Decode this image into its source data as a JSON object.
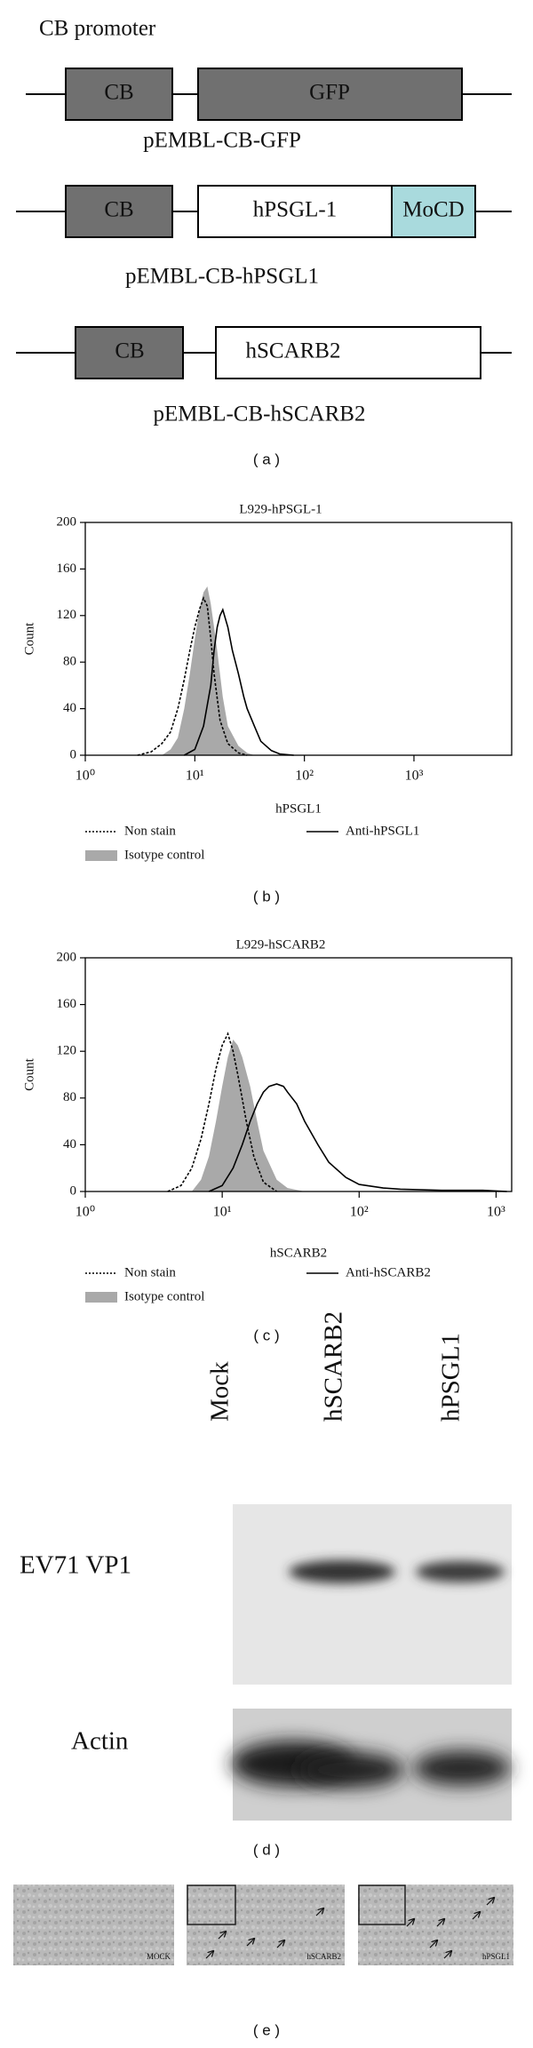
{
  "panel_a": {
    "header": "CB promoter",
    "constructs": [
      {
        "name": "pEMBL-CB-GFP",
        "boxes": [
          "CB",
          "GFP"
        ]
      },
      {
        "name": "pEMBL-CB-hPSGL1",
        "boxes": [
          "CB",
          "hPSGL-1",
          "MoCD"
        ]
      },
      {
        "name": "pEMBL-CB-hSCARB2",
        "boxes": [
          "CB",
          "hSCARB2"
        ]
      }
    ],
    "label": "( a )"
  },
  "chart_data": [
    {
      "type": "histogram-overlay",
      "title": "L929-hPSGL-1",
      "x_label": "hPSGL1",
      "y_label": "Count",
      "panel_label": "( b )",
      "log_x": true,
      "xlim": [
        1,
        7800
      ],
      "xticks": [
        {
          "value": 1,
          "label": "10⁰"
        },
        {
          "value": 10,
          "label": "10¹"
        },
        {
          "value": 100,
          "label": "10²"
        },
        {
          "value": 1000,
          "label": "10³"
        }
      ],
      "ylim": [
        0,
        200
      ],
      "yticks": [
        0,
        40,
        80,
        120,
        160,
        200
      ],
      "series": [
        {
          "name": "Non stain",
          "style": "dotted",
          "color": "#000000",
          "x": [
            3,
            4,
            5,
            6,
            7,
            8,
            9,
            10,
            11,
            12,
            13,
            14,
            15,
            17,
            20,
            25,
            30
          ],
          "values": [
            0,
            3,
            10,
            20,
            40,
            65,
            90,
            110,
            125,
            135,
            128,
            100,
            70,
            30,
            10,
            2,
            0
          ]
        },
        {
          "name": "Isotype control",
          "style": "filled",
          "color": "#a9a9a9",
          "x": [
            5,
            6,
            7,
            8,
            9,
            10,
            11,
            12,
            13,
            14,
            15,
            16,
            18,
            20,
            25,
            30,
            35
          ],
          "values": [
            0,
            5,
            15,
            40,
            70,
            100,
            125,
            140,
            145,
            130,
            110,
            90,
            50,
            25,
            8,
            2,
            0
          ]
        },
        {
          "name": "Anti-hPSGL1",
          "style": "solid",
          "color": "#000000",
          "x": [
            8,
            10,
            12,
            14,
            15,
            16,
            17,
            18,
            20,
            22,
            25,
            28,
            30,
            35,
            40,
            50,
            60,
            80
          ],
          "values": [
            0,
            5,
            25,
            60,
            90,
            110,
            120,
            125,
            110,
            90,
            70,
            50,
            40,
            25,
            12,
            4,
            1,
            0
          ]
        }
      ]
    },
    {
      "type": "histogram-overlay",
      "title": "L929-hSCARB2",
      "x_label": "hSCARB2",
      "y_label": "Count",
      "panel_label": "( c )",
      "log_x": true,
      "xlim": [
        1,
        1300
      ],
      "xticks": [
        {
          "value": 1,
          "label": "10⁰"
        },
        {
          "value": 10,
          "label": "10¹"
        },
        {
          "value": 100,
          "label": "10²"
        },
        {
          "value": 1000,
          "label": "10³"
        }
      ],
      "ylim": [
        0,
        200
      ],
      "yticks": [
        0,
        40,
        80,
        120,
        160,
        200
      ],
      "series": [
        {
          "name": "Non stain",
          "style": "dotted",
          "color": "#000000",
          "x": [
            4,
            5,
            6,
            7,
            8,
            9,
            10,
            11,
            12,
            13,
            15,
            17,
            20,
            25
          ],
          "values": [
            0,
            5,
            20,
            45,
            75,
            105,
            125,
            135,
            120,
            100,
            60,
            30,
            8,
            0
          ]
        },
        {
          "name": "Isotype control",
          "style": "filled",
          "color": "#a9a9a9",
          "x": [
            6,
            7,
            8,
            9,
            10,
            11,
            12,
            13,
            14,
            16,
            18,
            20,
            25,
            30,
            40
          ],
          "values": [
            0,
            10,
            30,
            60,
            90,
            115,
            130,
            125,
            115,
            90,
            60,
            35,
            10,
            3,
            0
          ]
        },
        {
          "name": "Anti-hSCARB2",
          "style": "solid",
          "color": "#000000",
          "x": [
            8,
            10,
            12,
            14,
            16,
            18,
            20,
            22,
            25,
            28,
            30,
            35,
            40,
            50,
            60,
            80,
            100,
            150,
            200,
            400,
            800,
            1200
          ],
          "values": [
            0,
            5,
            20,
            40,
            60,
            75,
            85,
            90,
            92,
            90,
            85,
            75,
            60,
            40,
            25,
            12,
            6,
            3,
            2,
            1,
            1,
            0
          ]
        }
      ]
    }
  ],
  "panel_d": {
    "lanes": [
      "Mock",
      "hSCARB2",
      "hPSGL1"
    ],
    "rows": [
      "EV71 VP1",
      "Actin"
    ],
    "label": "( d )"
  },
  "panel_e": {
    "images": [
      "MOCK",
      "hSCARB2",
      "hPSGL1"
    ],
    "label": "( e )"
  }
}
